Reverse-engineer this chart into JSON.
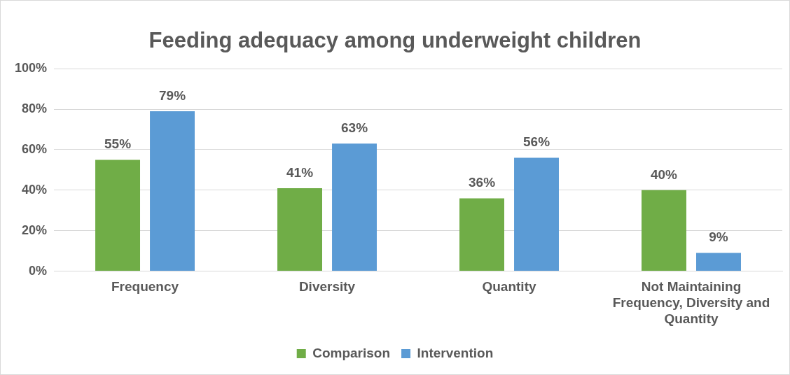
{
  "chart_data": {
    "type": "bar",
    "title": "Feeding adequacy among underweight children",
    "categories": [
      "Frequency",
      "Diversity",
      "Quantity",
      "Not Maintaining Frequency, Diversity and Quantity"
    ],
    "series": [
      {
        "name": "Comparison",
        "color": "#70ad47",
        "values": [
          55,
          41,
          36,
          40
        ],
        "value_labels": [
          "55%",
          "41%",
          "36%",
          "40%"
        ]
      },
      {
        "name": "Intervention",
        "color": "#5b9bd5",
        "values": [
          79,
          63,
          56,
          9
        ],
        "value_labels": [
          "79%",
          "63%",
          "56%",
          "9%"
        ]
      }
    ],
    "ylim": [
      0,
      100
    ],
    "yticks": [
      {
        "value": 0,
        "label": "0%"
      },
      {
        "value": 20,
        "label": "20%"
      },
      {
        "value": 40,
        "label": "40%"
      },
      {
        "value": 60,
        "label": "60%"
      },
      {
        "value": 80,
        "label": "80%"
      },
      {
        "value": 100,
        "label": "100%"
      }
    ],
    "grid": "y",
    "legend": "bottom"
  }
}
